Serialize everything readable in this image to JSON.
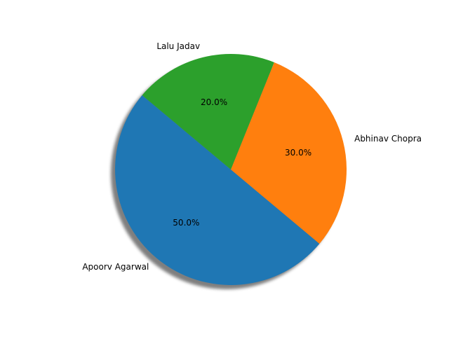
{
  "chart_data": {
    "type": "pie",
    "labels": [
      "Apoorv Agarwal",
      "Abhinav Chopra",
      "Lalu Jadav"
    ],
    "values": [
      50,
      30,
      20
    ],
    "percent_labels": [
      "50.0%",
      "30.0%",
      "20.0%"
    ],
    "colors": [
      "#1f77b4",
      "#ff7f0e",
      "#2ca02c"
    ],
    "start_angle_deg": 140,
    "direction": "counterclockwise",
    "shadow": true,
    "title": "",
    "legend": "none"
  }
}
